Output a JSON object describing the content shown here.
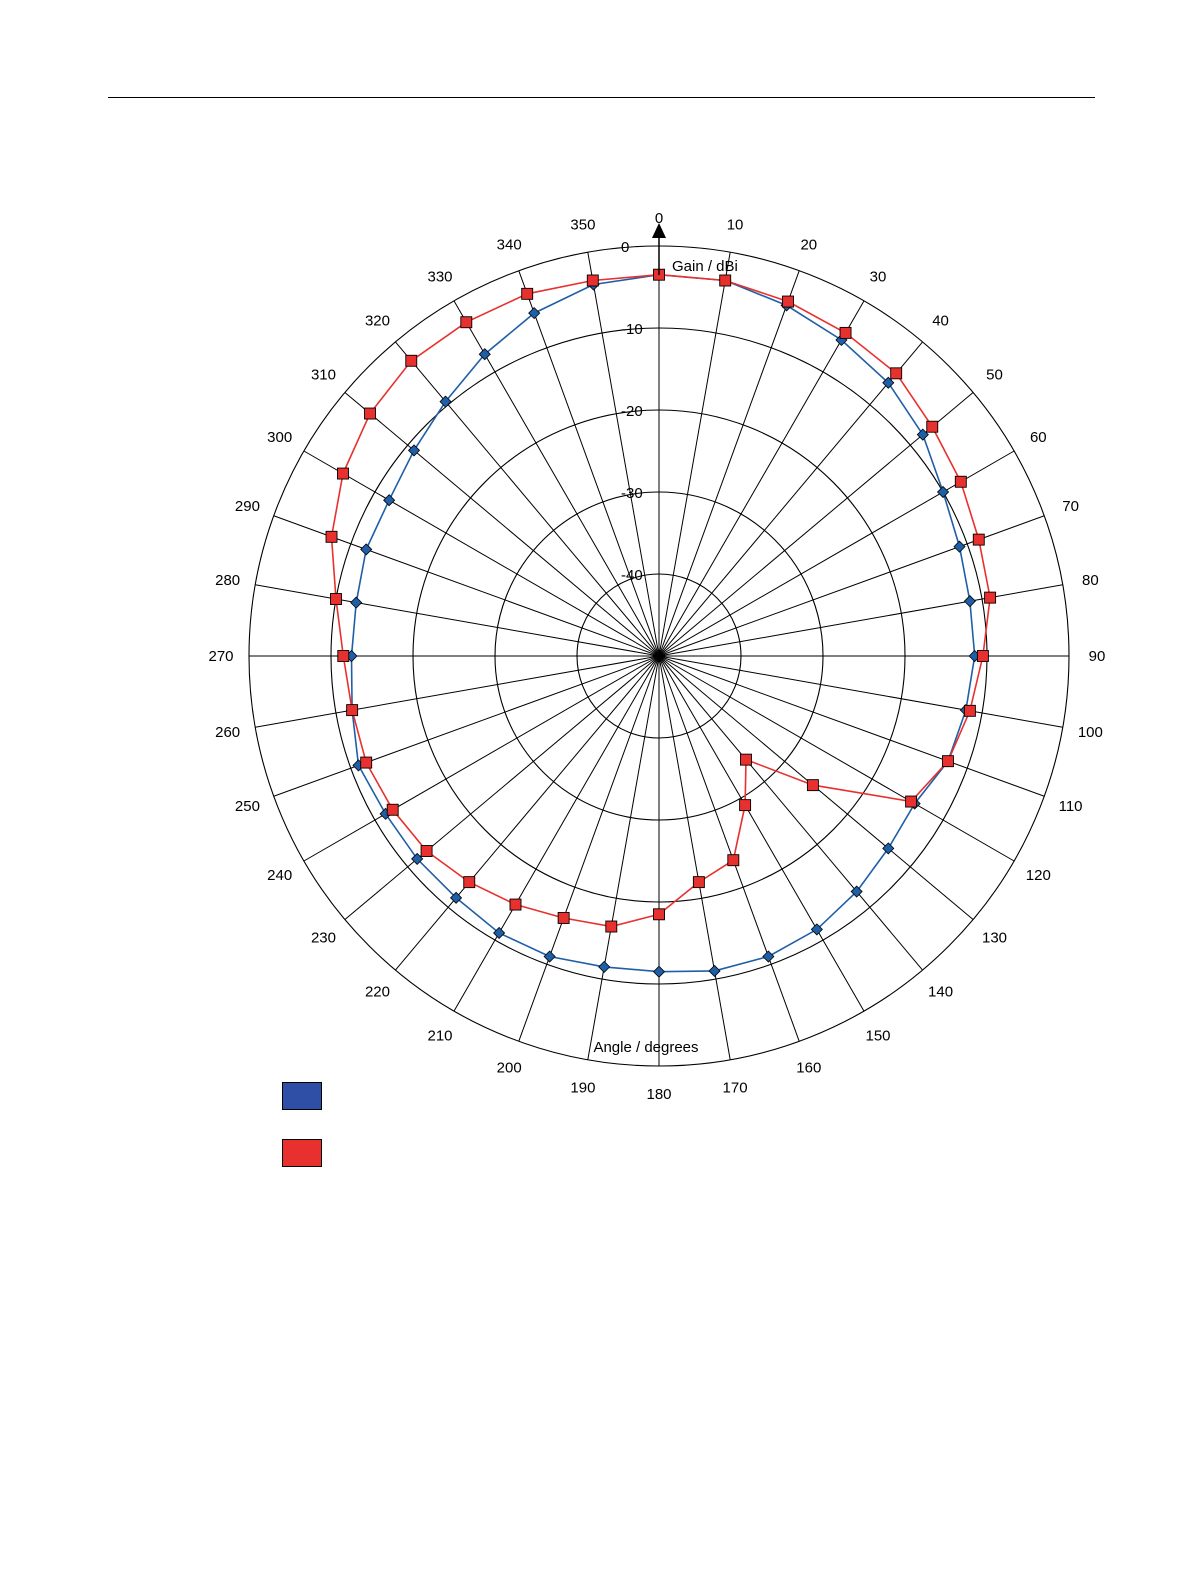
{
  "chart_data": {
    "type": "polar",
    "r_axis": {
      "label": "Gain / dBi",
      "range": [
        -40,
        0
      ],
      "ticks": [
        0,
        -10,
        -20,
        -30,
        -40
      ]
    },
    "theta_axis": {
      "label": "Angle / degrees",
      "ticks": [
        0,
        10,
        20,
        30,
        40,
        50,
        60,
        70,
        80,
        90,
        100,
        110,
        120,
        130,
        140,
        150,
        160,
        170,
        180,
        190,
        200,
        210,
        220,
        230,
        240,
        250,
        260,
        270,
        280,
        290,
        300,
        310,
        320,
        330,
        340,
        350
      ]
    },
    "grid": true,
    "legend": {
      "position": "bottom-left"
    },
    "series": [
      {
        "color": "#1f5fa8",
        "marker": "diamond",
        "legend_label": "",
        "angles": [
          0,
          10,
          20,
          30,
          40,
          50,
          60,
          70,
          80,
          90,
          100,
          110,
          120,
          130,
          140,
          150,
          160,
          170,
          180,
          190,
          200,
          210,
          220,
          230,
          240,
          250,
          260,
          270,
          280,
          290,
          300,
          310,
          320,
          330,
          340,
          350
        ],
        "values": [
          -3.5,
          -3.5,
          -4.5,
          -5.5,
          -6.5,
          -8.0,
          -10.0,
          -11.0,
          -11.5,
          -11.5,
          -12.0,
          -12.5,
          -14.0,
          -13.5,
          -12.5,
          -11.5,
          -11.0,
          -11.0,
          -11.5,
          -11.5,
          -11.0,
          -11.0,
          -11.5,
          -11.5,
          -11.5,
          -11.0,
          -12.0,
          -12.5,
          -12.5,
          -12.0,
          -12.0,
          -11.0,
          -9.5,
          -7.5,
          -5.5,
          -4.0
        ]
      },
      {
        "color": "#e8312e",
        "marker": "square",
        "legend_label": "",
        "angles": [
          0,
          10,
          20,
          30,
          40,
          50,
          60,
          70,
          80,
          90,
          100,
          110,
          120,
          130,
          140,
          150,
          160,
          170,
          180,
          190,
          200,
          210,
          220,
          230,
          240,
          250,
          260,
          270,
          280,
          290,
          300,
          310,
          320,
          330,
          340,
          350
        ],
        "values": [
          -3.5,
          -3.5,
          -4.0,
          -4.5,
          -5.0,
          -6.5,
          -7.5,
          -8.5,
          -9.0,
          -10.5,
          -11.5,
          -12.5,
          -14.5,
          -25.5,
          -33.5,
          -29.0,
          -23.5,
          -22.0,
          -18.5,
          -16.5,
          -16.0,
          -15.0,
          -14.0,
          -13.0,
          -12.5,
          -12.0,
          -12.0,
          -11.5,
          -10.0,
          -7.5,
          -5.5,
          -4.0,
          -3.0,
          -3.0,
          -3.0,
          -3.5
        ]
      }
    ]
  }
}
